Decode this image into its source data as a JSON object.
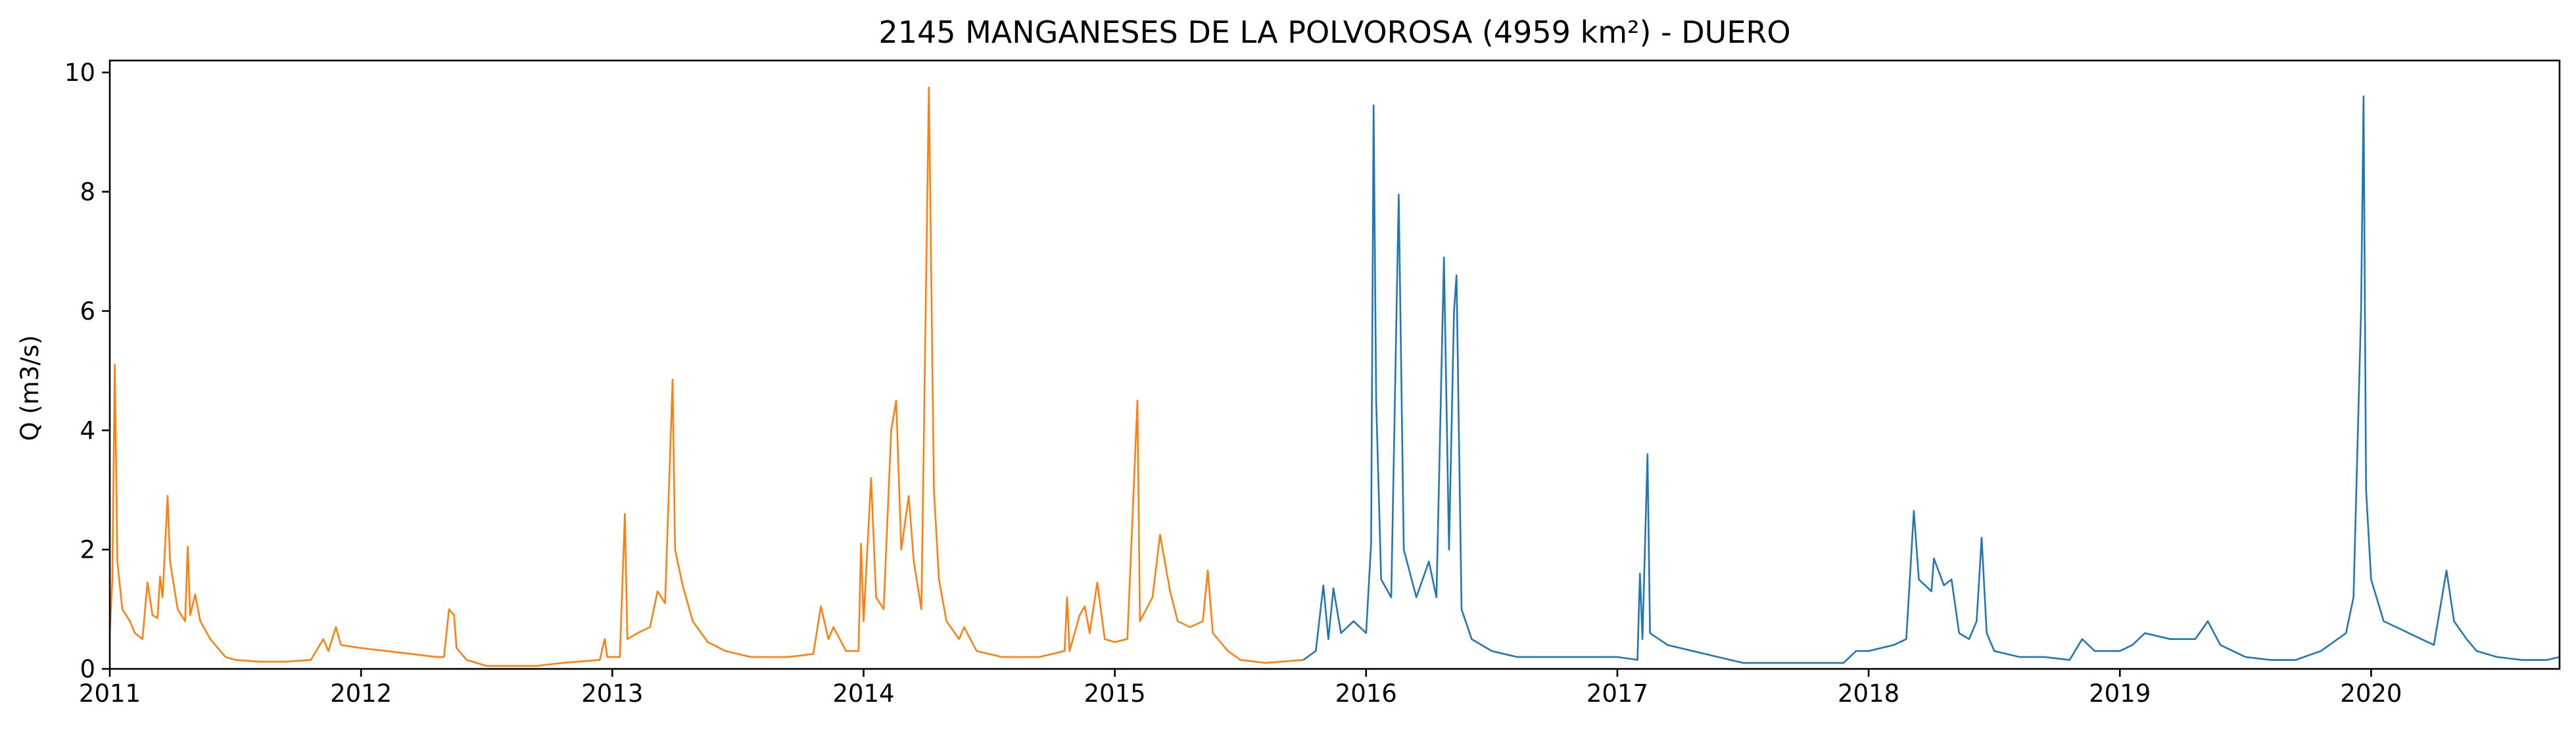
{
  "chart_data": {
    "type": "line",
    "title": "2145 MANGANESES DE LA POLVOROSA (4959 km²) - DUERO",
    "xlabel": "",
    "ylabel": "Q (m3/s)",
    "xlim": [
      2011.0,
      2020.75
    ],
    "ylim": [
      0,
      10.2
    ],
    "x_ticks": [
      2011,
      2012,
      2013,
      2014,
      2015,
      2016,
      2017,
      2018,
      2019,
      2020
    ],
    "x_tick_labels": [
      "2011",
      "2012",
      "2013",
      "2014",
      "2015",
      "2016",
      "2017",
      "2018",
      "2019",
      "2020"
    ],
    "y_ticks": [
      0,
      2,
      4,
      6,
      8,
      10
    ],
    "y_tick_labels": [
      "0",
      "2",
      "4",
      "6",
      "8",
      "10"
    ],
    "grid": false,
    "colors": [
      "#ff7f0e",
      "#1f77b4"
    ],
    "series": [
      {
        "color": "#ff7f0e",
        "points": [
          [
            2011.0,
            0.6
          ],
          [
            2011.01,
            1.5
          ],
          [
            2011.02,
            5.1
          ],
          [
            2011.03,
            1.8
          ],
          [
            2011.05,
            1.0
          ],
          [
            2011.08,
            0.8
          ],
          [
            2011.1,
            0.6
          ],
          [
            2011.13,
            0.5
          ],
          [
            2011.15,
            1.45
          ],
          [
            2011.17,
            0.9
          ],
          [
            2011.19,
            0.85
          ],
          [
            2011.2,
            1.55
          ],
          [
            2011.21,
            1.2
          ],
          [
            2011.23,
            2.9
          ],
          [
            2011.24,
            1.8
          ],
          [
            2011.27,
            1.0
          ],
          [
            2011.3,
            0.8
          ],
          [
            2011.31,
            2.05
          ],
          [
            2011.32,
            0.9
          ],
          [
            2011.34,
            1.25
          ],
          [
            2011.36,
            0.8
          ],
          [
            2011.4,
            0.5
          ],
          [
            2011.43,
            0.35
          ],
          [
            2011.46,
            0.2
          ],
          [
            2011.5,
            0.15
          ],
          [
            2011.6,
            0.12
          ],
          [
            2011.7,
            0.12
          ],
          [
            2011.8,
            0.15
          ],
          [
            2011.85,
            0.5
          ],
          [
            2011.87,
            0.3
          ],
          [
            2011.9,
            0.7
          ],
          [
            2011.92,
            0.4
          ],
          [
            2012.0,
            0.35
          ],
          [
            2012.1,
            0.3
          ],
          [
            2012.2,
            0.25
          ],
          [
            2012.3,
            0.2
          ],
          [
            2012.33,
            0.2
          ],
          [
            2012.35,
            1.0
          ],
          [
            2012.37,
            0.9
          ],
          [
            2012.38,
            0.35
          ],
          [
            2012.42,
            0.15
          ],
          [
            2012.5,
            0.05
          ],
          [
            2012.7,
            0.05
          ],
          [
            2012.8,
            0.1
          ],
          [
            2012.95,
            0.15
          ],
          [
            2012.97,
            0.5
          ],
          [
            2012.98,
            0.2
          ],
          [
            2013.03,
            0.2
          ],
          [
            2013.05,
            2.6
          ],
          [
            2013.06,
            0.5
          ],
          [
            2013.1,
            0.6
          ],
          [
            2013.15,
            0.7
          ],
          [
            2013.18,
            1.3
          ],
          [
            2013.21,
            1.1
          ],
          [
            2013.24,
            4.85
          ],
          [
            2013.25,
            2.0
          ],
          [
            2013.28,
            1.4
          ],
          [
            2013.32,
            0.8
          ],
          [
            2013.38,
            0.45
          ],
          [
            2013.45,
            0.3
          ],
          [
            2013.55,
            0.2
          ],
          [
            2013.7,
            0.2
          ],
          [
            2013.8,
            0.25
          ],
          [
            2013.83,
            1.05
          ],
          [
            2013.86,
            0.5
          ],
          [
            2013.88,
            0.7
          ],
          [
            2013.93,
            0.3
          ],
          [
            2013.98,
            0.3
          ],
          [
            2013.99,
            2.1
          ],
          [
            2014.0,
            0.8
          ],
          [
            2014.03,
            3.2
          ],
          [
            2014.05,
            1.2
          ],
          [
            2014.08,
            1.0
          ],
          [
            2014.11,
            4.0
          ],
          [
            2014.13,
            4.5
          ],
          [
            2014.15,
            2.0
          ],
          [
            2014.18,
            2.9
          ],
          [
            2014.2,
            1.8
          ],
          [
            2014.23,
            1.0
          ],
          [
            2014.26,
            9.75
          ],
          [
            2014.28,
            3.0
          ],
          [
            2014.3,
            1.5
          ],
          [
            2014.33,
            0.8
          ],
          [
            2014.38,
            0.5
          ],
          [
            2014.4,
            0.7
          ],
          [
            2014.45,
            0.3
          ],
          [
            2014.55,
            0.2
          ],
          [
            2014.7,
            0.2
          ],
          [
            2014.8,
            0.3
          ],
          [
            2014.81,
            1.2
          ],
          [
            2014.82,
            0.3
          ],
          [
            2014.86,
            0.9
          ],
          [
            2014.88,
            1.05
          ],
          [
            2014.9,
            0.6
          ],
          [
            2014.93,
            1.45
          ],
          [
            2014.96,
            0.5
          ],
          [
            2015.0,
            0.45
          ],
          [
            2015.05,
            0.5
          ],
          [
            2015.09,
            4.5
          ],
          [
            2015.1,
            0.8
          ],
          [
            2015.15,
            1.2
          ],
          [
            2015.18,
            2.25
          ],
          [
            2015.22,
            1.3
          ],
          [
            2015.25,
            0.8
          ],
          [
            2015.3,
            0.7
          ],
          [
            2015.35,
            0.8
          ],
          [
            2015.37,
            1.65
          ],
          [
            2015.39,
            0.6
          ],
          [
            2015.45,
            0.3
          ],
          [
            2015.5,
            0.15
          ],
          [
            2015.6,
            0.1
          ],
          [
            2015.75,
            0.15
          ]
        ]
      },
      {
        "color": "#1f77b4",
        "points": [
          [
            2015.75,
            0.15
          ],
          [
            2015.8,
            0.3
          ],
          [
            2015.83,
            1.4
          ],
          [
            2015.85,
            0.5
          ],
          [
            2015.87,
            1.35
          ],
          [
            2015.9,
            0.6
          ],
          [
            2015.95,
            0.8
          ],
          [
            2016.0,
            0.6
          ],
          [
            2016.02,
            2.1
          ],
          [
            2016.03,
            9.45
          ],
          [
            2016.04,
            4.5
          ],
          [
            2016.06,
            1.5
          ],
          [
            2016.1,
            1.2
          ],
          [
            2016.13,
            7.95
          ],
          [
            2016.15,
            2.0
          ],
          [
            2016.2,
            1.2
          ],
          [
            2016.25,
            1.8
          ],
          [
            2016.28,
            1.2
          ],
          [
            2016.31,
            6.9
          ],
          [
            2016.33,
            2.0
          ],
          [
            2016.35,
            6.0
          ],
          [
            2016.36,
            6.6
          ],
          [
            2016.38,
            1.0
          ],
          [
            2016.42,
            0.5
          ],
          [
            2016.5,
            0.3
          ],
          [
            2016.6,
            0.2
          ],
          [
            2016.8,
            0.2
          ],
          [
            2017.0,
            0.2
          ],
          [
            2017.08,
            0.15
          ],
          [
            2017.09,
            1.6
          ],
          [
            2017.1,
            0.5
          ],
          [
            2017.12,
            3.6
          ],
          [
            2017.13,
            0.6
          ],
          [
            2017.2,
            0.4
          ],
          [
            2017.3,
            0.3
          ],
          [
            2017.4,
            0.2
          ],
          [
            2017.5,
            0.1
          ],
          [
            2017.7,
            0.1
          ],
          [
            2017.9,
            0.1
          ],
          [
            2017.95,
            0.3
          ],
          [
            2018.0,
            0.3
          ],
          [
            2018.1,
            0.4
          ],
          [
            2018.15,
            0.5
          ],
          [
            2018.18,
            2.65
          ],
          [
            2018.2,
            1.5
          ],
          [
            2018.25,
            1.3
          ],
          [
            2018.26,
            1.85
          ],
          [
            2018.3,
            1.4
          ],
          [
            2018.33,
            1.5
          ],
          [
            2018.36,
            0.6
          ],
          [
            2018.4,
            0.5
          ],
          [
            2018.43,
            0.8
          ],
          [
            2018.45,
            2.2
          ],
          [
            2018.47,
            0.6
          ],
          [
            2018.5,
            0.3
          ],
          [
            2018.6,
            0.2
          ],
          [
            2018.7,
            0.2
          ],
          [
            2018.8,
            0.15
          ],
          [
            2018.85,
            0.5
          ],
          [
            2018.9,
            0.3
          ],
          [
            2019.0,
            0.3
          ],
          [
            2019.05,
            0.4
          ],
          [
            2019.1,
            0.6
          ],
          [
            2019.2,
            0.5
          ],
          [
            2019.3,
            0.5
          ],
          [
            2019.35,
            0.8
          ],
          [
            2019.4,
            0.4
          ],
          [
            2019.5,
            0.2
          ],
          [
            2019.6,
            0.15
          ],
          [
            2019.7,
            0.15
          ],
          [
            2019.8,
            0.3
          ],
          [
            2019.9,
            0.6
          ],
          [
            2019.93,
            1.2
          ],
          [
            2019.96,
            6.0
          ],
          [
            2019.97,
            9.6
          ],
          [
            2019.98,
            3.0
          ],
          [
            2020.0,
            1.5
          ],
          [
            2020.05,
            0.8
          ],
          [
            2020.1,
            0.7
          ],
          [
            2020.2,
            0.5
          ],
          [
            2020.25,
            0.4
          ],
          [
            2020.3,
            1.65
          ],
          [
            2020.33,
            0.8
          ],
          [
            2020.38,
            0.5
          ],
          [
            2020.42,
            0.3
          ],
          [
            2020.5,
            0.2
          ],
          [
            2020.6,
            0.15
          ],
          [
            2020.7,
            0.15
          ],
          [
            2020.75,
            0.2
          ]
        ]
      }
    ]
  }
}
